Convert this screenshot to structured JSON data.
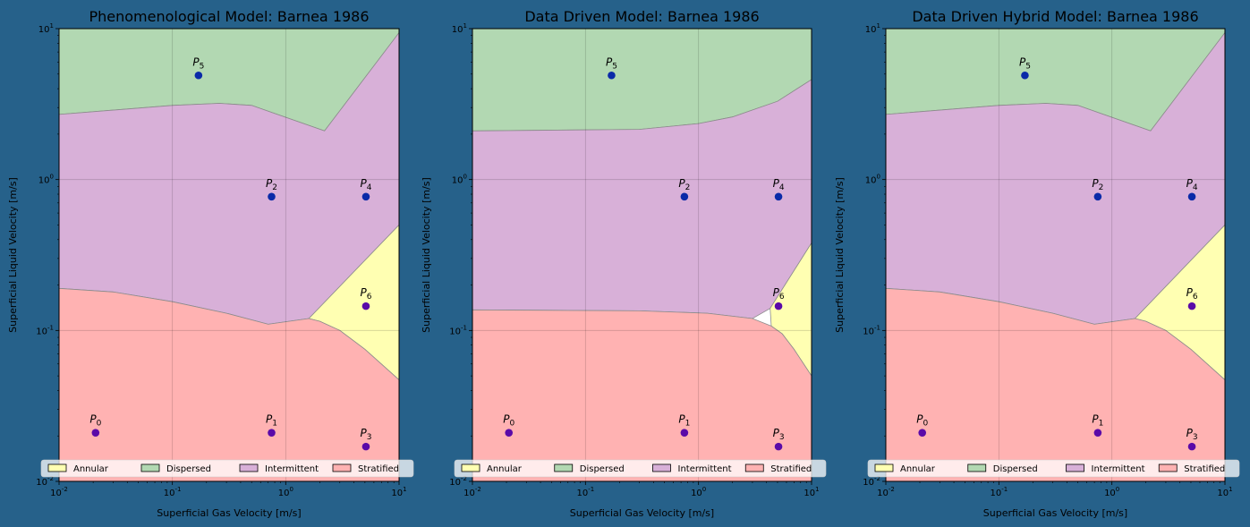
{
  "chart_data": [
    {
      "type": "area",
      "title": "Phenomenological Model: Barnea 1986",
      "xlabel": "Superficial Gas Velocity [m/s]",
      "ylabel": "Superficial Liquid Velocity [m/s]",
      "xscale": "log",
      "yscale": "log",
      "xlim": [
        0.01,
        10
      ],
      "ylim": [
        0.01,
        10
      ],
      "x_ticks": [
        "10",
        "10",
        "10",
        "10"
      ],
      "x_tick_exponents": [
        "-2",
        "-1",
        "0",
        "1"
      ],
      "y_ticks": [
        "10",
        "10",
        "10",
        "10"
      ],
      "y_tick_exponents": [
        "-2",
        "-1",
        "0",
        "1"
      ],
      "grid": true,
      "legend_position": "bottom",
      "legend": [
        "Annular",
        "Dispersed",
        "Intermittent",
        "Stratified"
      ],
      "regions": [
        {
          "name": "Dispersed",
          "color": "#b2d8b2",
          "boundary": [
            [
              0.01,
              10
            ],
            [
              10,
              10
            ],
            [
              10,
              9.4
            ],
            [
              2.2,
              2.1
            ],
            [
              0.5,
              3.1
            ],
            [
              0.26,
              3.2
            ],
            [
              0.1,
              3.1
            ],
            [
              0.01,
              2.7
            ]
          ]
        },
        {
          "name": "Intermittent",
          "color": "#d8b0d8",
          "boundary": [
            [
              0.01,
              2.7
            ],
            [
              0.1,
              3.1
            ],
            [
              0.26,
              3.2
            ],
            [
              0.5,
              3.1
            ],
            [
              2.2,
              2.1
            ],
            [
              10,
              9.4
            ],
            [
              10,
              0.5
            ],
            [
              1.6,
              0.12
            ],
            [
              0.7,
              0.11
            ],
            [
              0.3,
              0.13
            ],
            [
              0.1,
              0.155
            ],
            [
              0.03,
              0.18
            ],
            [
              0.01,
              0.19
            ]
          ]
        },
        {
          "name": "Annular",
          "color": "#ffffb2",
          "boundary": [
            [
              1.6,
              0.12
            ],
            [
              10,
              0.5
            ],
            [
              10,
              0.047
            ],
            [
              5,
              0.075
            ],
            [
              3.0,
              0.1
            ],
            [
              2.0,
              0.115
            ]
          ]
        },
        {
          "name": "Stratified",
          "color": "#ffb2b2",
          "boundary": [
            [
              0.01,
              0.19
            ],
            [
              0.03,
              0.18
            ],
            [
              0.1,
              0.155
            ],
            [
              0.3,
              0.13
            ],
            [
              0.7,
              0.11
            ],
            [
              1.6,
              0.12
            ],
            [
              2.0,
              0.115
            ],
            [
              3.0,
              0.1
            ],
            [
              5,
              0.075
            ],
            [
              10,
              0.047
            ],
            [
              10,
              0.01
            ],
            [
              0.01,
              0.01
            ]
          ]
        }
      ],
      "points": [
        {
          "label": "P",
          "sub": "0",
          "x": 0.021,
          "y": 0.021
        },
        {
          "label": "P",
          "sub": "1",
          "x": 0.75,
          "y": 0.021
        },
        {
          "label": "P",
          "sub": "2",
          "x": 0.75,
          "y": 0.77
        },
        {
          "label": "P",
          "sub": "3",
          "x": 5.1,
          "y": 0.017
        },
        {
          "label": "P",
          "sub": "4",
          "x": 5.1,
          "y": 0.77
        },
        {
          "label": "P",
          "sub": "5",
          "x": 0.17,
          "y": 4.9
        },
        {
          "label": "P",
          "sub": "6",
          "x": 5.1,
          "y": 0.145
        }
      ]
    },
    {
      "type": "area",
      "title": "Data Driven Model: Barnea 1986",
      "xlabel": "Superficial Gas Velocity [m/s]",
      "ylabel": "Superficial Liquid Velocity [m/s]",
      "xscale": "log",
      "yscale": "log",
      "xlim": [
        0.01,
        10
      ],
      "ylim": [
        0.01,
        10
      ],
      "x_ticks": [
        "10",
        "10",
        "10",
        "10"
      ],
      "x_tick_exponents": [
        "-2",
        "-1",
        "0",
        "1"
      ],
      "y_ticks": [
        "10",
        "10",
        "10",
        "10"
      ],
      "y_tick_exponents": [
        "-2",
        "-1",
        "0",
        "1"
      ],
      "grid": true,
      "legend_position": "bottom",
      "legend": [
        "Annular",
        "Dispersed",
        "Intermittent",
        "Stratified"
      ],
      "regions": [
        {
          "name": "Dispersed",
          "color": "#b2d8b2",
          "boundary": [
            [
              0.01,
              10
            ],
            [
              10,
              10
            ],
            [
              10,
              4.6
            ],
            [
              5,
              3.3
            ],
            [
              2,
              2.6
            ],
            [
              1,
              2.35
            ],
            [
              0.3,
              2.15
            ],
            [
              0.01,
              2.1
            ]
          ]
        },
        {
          "name": "Intermittent",
          "color": "#d8b0d8",
          "boundary": [
            [
              0.01,
              2.1
            ],
            [
              0.3,
              2.15
            ],
            [
              1,
              2.35
            ],
            [
              2,
              2.6
            ],
            [
              5,
              3.3
            ],
            [
              10,
              4.6
            ],
            [
              10,
              0.38
            ],
            [
              4.3,
              0.14
            ],
            [
              3.0,
              0.12
            ],
            [
              1.2,
              0.13
            ],
            [
              0.3,
              0.135
            ],
            [
              0.01,
              0.137
            ]
          ]
        },
        {
          "name": "Annular",
          "color": "#ffffb2",
          "boundary": [
            [
              4.3,
              0.14
            ],
            [
              10,
              0.38
            ],
            [
              10,
              0.05
            ],
            [
              7,
              0.075
            ],
            [
              5.5,
              0.095
            ],
            [
              4.4,
              0.107
            ]
          ]
        },
        {
          "name": "Stratified",
          "color": "#ffb2b2",
          "boundary": [
            [
              0.01,
              0.137
            ],
            [
              0.3,
              0.135
            ],
            [
              1.2,
              0.13
            ],
            [
              3.0,
              0.12
            ],
            [
              4.4,
              0.107
            ],
            [
              5.5,
              0.095
            ],
            [
              7,
              0.075
            ],
            [
              10,
              0.05
            ],
            [
              10,
              0.01
            ],
            [
              0.01,
              0.01
            ]
          ]
        }
      ],
      "points": [
        {
          "label": "P",
          "sub": "0",
          "x": 0.021,
          "y": 0.021
        },
        {
          "label": "P",
          "sub": "1",
          "x": 0.75,
          "y": 0.021
        },
        {
          "label": "P",
          "sub": "2",
          "x": 0.75,
          "y": 0.77
        },
        {
          "label": "P",
          "sub": "3",
          "x": 5.1,
          "y": 0.017
        },
        {
          "label": "P",
          "sub": "4",
          "x": 5.1,
          "y": 0.77
        },
        {
          "label": "P",
          "sub": "5",
          "x": 0.17,
          "y": 4.9
        },
        {
          "label": "P",
          "sub": "6",
          "x": 5.1,
          "y": 0.145
        }
      ]
    },
    {
      "type": "area",
      "title": "Data Driven Hybrid Model: Barnea 1986",
      "xlabel": "Superficial Gas Velocity [m/s]",
      "ylabel": "Superficial Liquid Velocity [m/s]",
      "xscale": "log",
      "yscale": "log",
      "xlim": [
        0.01,
        10
      ],
      "ylim": [
        0.01,
        10
      ],
      "x_ticks": [
        "10",
        "10",
        "10",
        "10"
      ],
      "x_tick_exponents": [
        "-2",
        "-1",
        "0",
        "1"
      ],
      "y_ticks": [
        "10",
        "10",
        "10",
        "10"
      ],
      "y_tick_exponents": [
        "-2",
        "-1",
        "0",
        "1"
      ],
      "grid": true,
      "legend_position": "bottom",
      "legend": [
        "Annular",
        "Dispersed",
        "Intermittent",
        "Stratified"
      ],
      "regions": [
        {
          "name": "Dispersed",
          "color": "#b2d8b2",
          "boundary": [
            [
              0.01,
              10
            ],
            [
              10,
              10
            ],
            [
              10,
              9.4
            ],
            [
              2.2,
              2.1
            ],
            [
              0.5,
              3.1
            ],
            [
              0.26,
              3.2
            ],
            [
              0.1,
              3.1
            ],
            [
              0.01,
              2.7
            ]
          ]
        },
        {
          "name": "Intermittent",
          "color": "#d8b0d8",
          "boundary": [
            [
              0.01,
              2.7
            ],
            [
              0.1,
              3.1
            ],
            [
              0.26,
              3.2
            ],
            [
              0.5,
              3.1
            ],
            [
              2.2,
              2.1
            ],
            [
              10,
              9.4
            ],
            [
              10,
              0.5
            ],
            [
              1.6,
              0.12
            ],
            [
              0.7,
              0.11
            ],
            [
              0.3,
              0.13
            ],
            [
              0.1,
              0.155
            ],
            [
              0.03,
              0.18
            ],
            [
              0.01,
              0.19
            ]
          ]
        },
        {
          "name": "Annular",
          "color": "#ffffb2",
          "boundary": [
            [
              1.6,
              0.12
            ],
            [
              10,
              0.5
            ],
            [
              10,
              0.047
            ],
            [
              5,
              0.075
            ],
            [
              3.0,
              0.1
            ],
            [
              2.0,
              0.115
            ]
          ]
        },
        {
          "name": "Stratified",
          "color": "#ffb2b2",
          "boundary": [
            [
              0.01,
              0.19
            ],
            [
              0.03,
              0.18
            ],
            [
              0.1,
              0.155
            ],
            [
              0.3,
              0.13
            ],
            [
              0.7,
              0.11
            ],
            [
              1.6,
              0.12
            ],
            [
              2.0,
              0.115
            ],
            [
              3.0,
              0.1
            ],
            [
              5,
              0.075
            ],
            [
              10,
              0.047
            ],
            [
              10,
              0.01
            ],
            [
              0.01,
              0.01
            ]
          ]
        }
      ],
      "points": [
        {
          "label": "P",
          "sub": "0",
          "x": 0.021,
          "y": 0.021
        },
        {
          "label": "P",
          "sub": "1",
          "x": 0.75,
          "y": 0.021
        },
        {
          "label": "P",
          "sub": "2",
          "x": 0.75,
          "y": 0.77
        },
        {
          "label": "P",
          "sub": "3",
          "x": 5.1,
          "y": 0.017
        },
        {
          "label": "P",
          "sub": "4",
          "x": 5.1,
          "y": 0.77
        },
        {
          "label": "P",
          "sub": "5",
          "x": 0.17,
          "y": 4.9
        },
        {
          "label": "P",
          "sub": "6",
          "x": 5.1,
          "y": 0.145
        }
      ]
    }
  ],
  "colors": {
    "figure_background": "#26618a",
    "Annular": "#ffffb2",
    "Dispersed": "#b2d8b2",
    "Intermittent": "#d8b0d8",
    "Stratified": "#ffb2b2",
    "point_low": "#5a0aa8",
    "point_high": "#0a2aa8"
  }
}
